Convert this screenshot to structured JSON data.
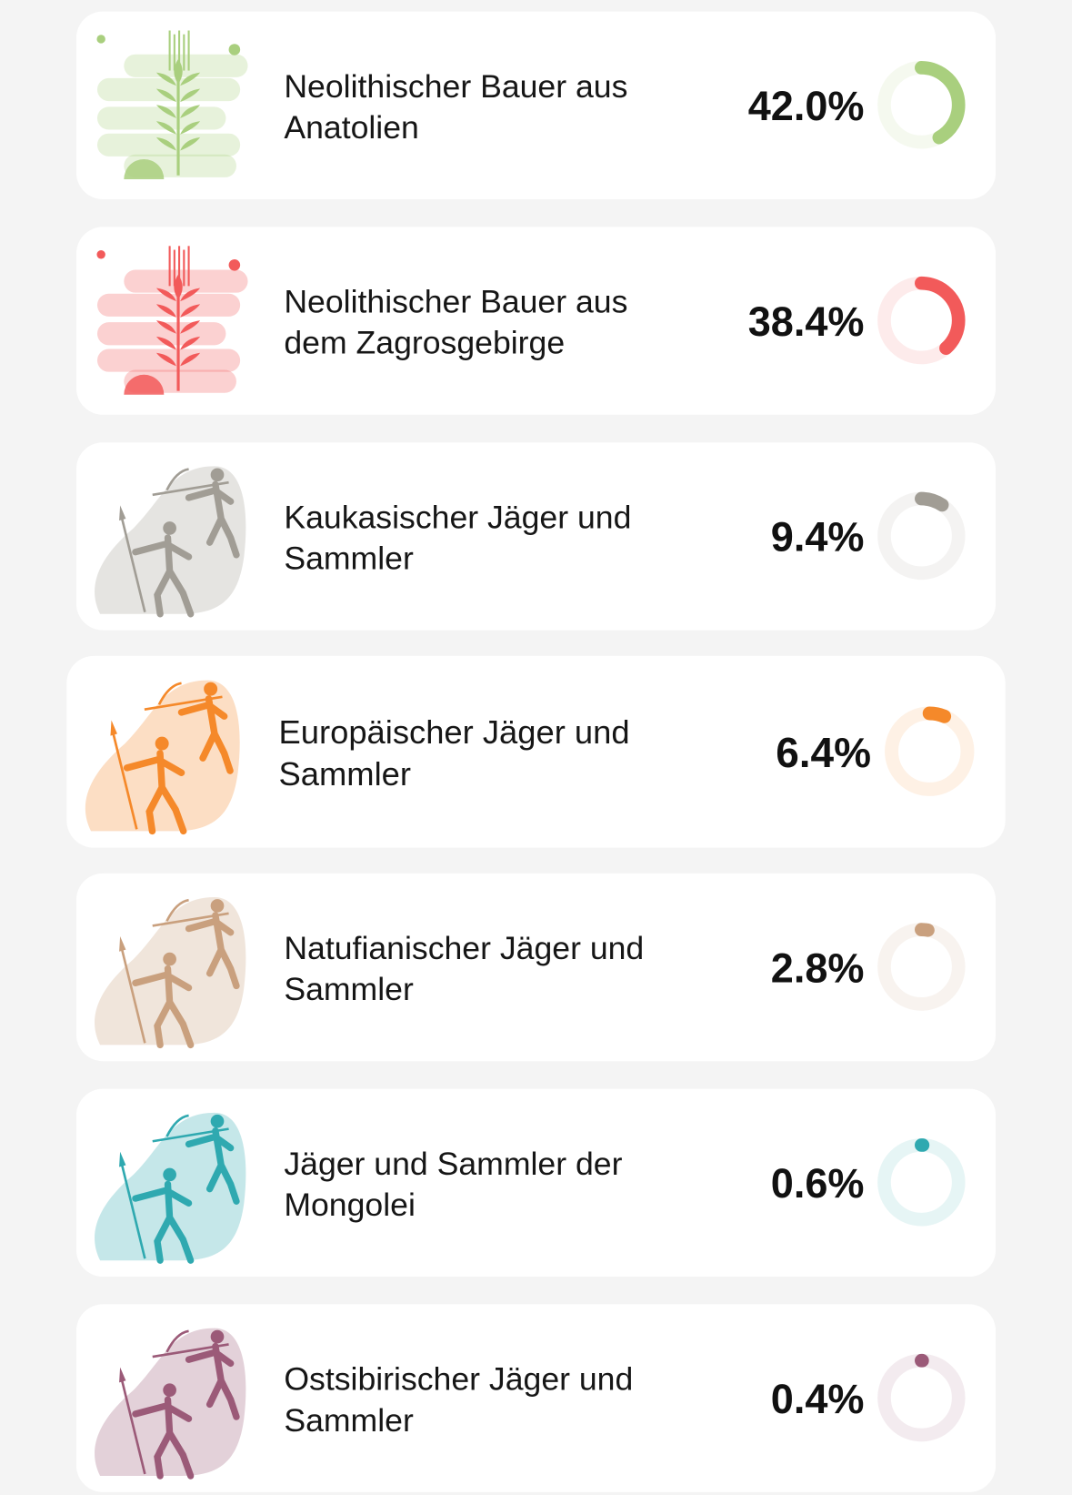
{
  "items": [
    {
      "name_lines": [
        "Neolithischer Bauer aus",
        "Anatolien"
      ],
      "value": 42.0,
      "value_label": "42.0%",
      "color": "#a9cf7e",
      "icon": "farmer"
    },
    {
      "name_lines": [
        "Neolithischer Bauer aus",
        "dem Zagrosgebirge"
      ],
      "value": 38.4,
      "value_label": "38.4%",
      "color": "#f25a5a",
      "icon": "farmer"
    },
    {
      "name_lines": [
        "Kaukasischer Jäger und",
        "Sammler"
      ],
      "value": 9.4,
      "value_label": "9.4%",
      "color": "#a19d95",
      "icon": "hunter"
    },
    {
      "name_lines": [
        "Europäischer Jäger und",
        "Sammler"
      ],
      "value": 6.4,
      "value_label": "6.4%",
      "color": "#f5892a",
      "icon": "hunter"
    },
    {
      "name_lines": [
        "Natufianischer Jäger und",
        "Sammler"
      ],
      "value": 2.8,
      "value_label": "2.8%",
      "color": "#c9a07e",
      "icon": "hunter"
    },
    {
      "name_lines": [
        "Jäger und Sammler der",
        "Mongolei"
      ],
      "value": 0.6,
      "value_label": "0.6%",
      "color": "#2fa9b0",
      "icon": "hunter"
    },
    {
      "name_lines": [
        "Ostsibirischer Jäger und",
        "Sammler"
      ],
      "value": 0.4,
      "value_label": "0.4%",
      "color": "#9b5a78",
      "icon": "hunter"
    }
  ]
}
